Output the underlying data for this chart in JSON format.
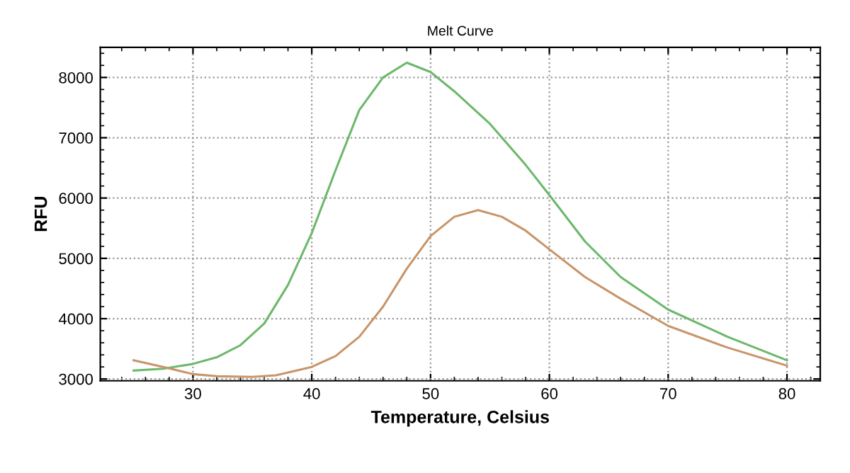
{
  "chart_data": {
    "type": "line",
    "title": "Melt Curve",
    "xlabel": "Temperature, Celsius",
    "ylabel": "RFU",
    "xlim": [
      22.2,
      82.8
    ],
    "ylim": [
      2970,
      8500
    ],
    "xticks": [
      30,
      40,
      50,
      60,
      70,
      80
    ],
    "yticks": [
      3000,
      4000,
      5000,
      6000,
      7000,
      8000
    ],
    "grid": true,
    "marker": "none",
    "line_style": "solid",
    "series": [
      {
        "color": "#6cb86c",
        "x": [
          25,
          27.5,
          30,
          32,
          34,
          36,
          38,
          40,
          42,
          44,
          46,
          48,
          50,
          52,
          55,
          58,
          60,
          63,
          66,
          70,
          75,
          80
        ],
        "values": [
          3140,
          3170,
          3250,
          3360,
          3560,
          3920,
          4560,
          5420,
          6460,
          7460,
          8000,
          8245,
          8090,
          7770,
          7230,
          6550,
          6050,
          5280,
          4690,
          4150,
          3700,
          3310
        ]
      },
      {
        "color": "#c8956a",
        "x": [
          25,
          27.5,
          30,
          32,
          35,
          37,
          40,
          42,
          44,
          46,
          48,
          50,
          52,
          54,
          56,
          58,
          60,
          63,
          66,
          70,
          75,
          80
        ],
        "values": [
          3310,
          3200,
          3080,
          3045,
          3035,
          3060,
          3200,
          3380,
          3700,
          4200,
          4830,
          5370,
          5690,
          5800,
          5690,
          5460,
          5150,
          4690,
          4330,
          3880,
          3520,
          3220
        ]
      }
    ]
  }
}
